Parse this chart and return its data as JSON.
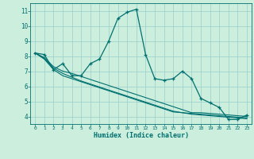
{
  "xlabel": "Humidex (Indice chaleur)",
  "x": [
    0,
    1,
    2,
    3,
    4,
    5,
    6,
    7,
    8,
    9,
    10,
    11,
    12,
    13,
    14,
    15,
    16,
    17,
    18,
    19,
    20,
    21,
    22,
    23
  ],
  "line1_y": [
    8.2,
    8.1,
    7.1,
    7.5,
    6.7,
    6.7,
    7.5,
    7.8,
    9.0,
    10.5,
    10.9,
    11.1,
    8.1,
    6.5,
    6.4,
    6.5,
    7.0,
    6.5,
    5.2,
    4.9,
    4.6,
    3.8,
    3.8,
    4.1
  ],
  "line2_y": [
    8.2,
    7.9,
    7.3,
    7.0,
    6.85,
    6.65,
    6.45,
    6.25,
    6.05,
    5.85,
    5.65,
    5.45,
    5.25,
    5.05,
    4.85,
    4.65,
    4.45,
    4.25,
    4.25,
    4.2,
    4.15,
    4.1,
    4.05,
    4.0
  ],
  "line3_y": [
    8.2,
    7.85,
    7.2,
    6.85,
    6.6,
    6.35,
    6.15,
    5.95,
    5.75,
    5.55,
    5.35,
    5.15,
    4.95,
    4.75,
    4.55,
    4.35,
    4.25,
    4.15,
    4.1,
    4.05,
    4.0,
    3.95,
    3.9,
    3.85
  ],
  "line4_y": [
    8.2,
    7.8,
    7.1,
    6.7,
    6.5,
    6.3,
    6.1,
    5.9,
    5.7,
    5.5,
    5.3,
    5.1,
    4.9,
    4.7,
    4.5,
    4.3,
    4.25,
    4.2,
    4.15,
    4.1,
    4.05,
    4.0,
    3.95,
    3.9
  ],
  "line_color": "#007070",
  "bg_color": "#cceedd",
  "grid_color": "#99cccc",
  "ylim": [
    3.5,
    11.5
  ],
  "xlim": [
    -0.5,
    23.5
  ],
  "yticks": [
    4,
    5,
    6,
    7,
    8,
    9,
    10,
    11
  ],
  "xticks": [
    0,
    1,
    2,
    3,
    4,
    5,
    6,
    7,
    8,
    9,
    10,
    11,
    12,
    13,
    14,
    15,
    16,
    17,
    18,
    19,
    20,
    21,
    22,
    23
  ]
}
